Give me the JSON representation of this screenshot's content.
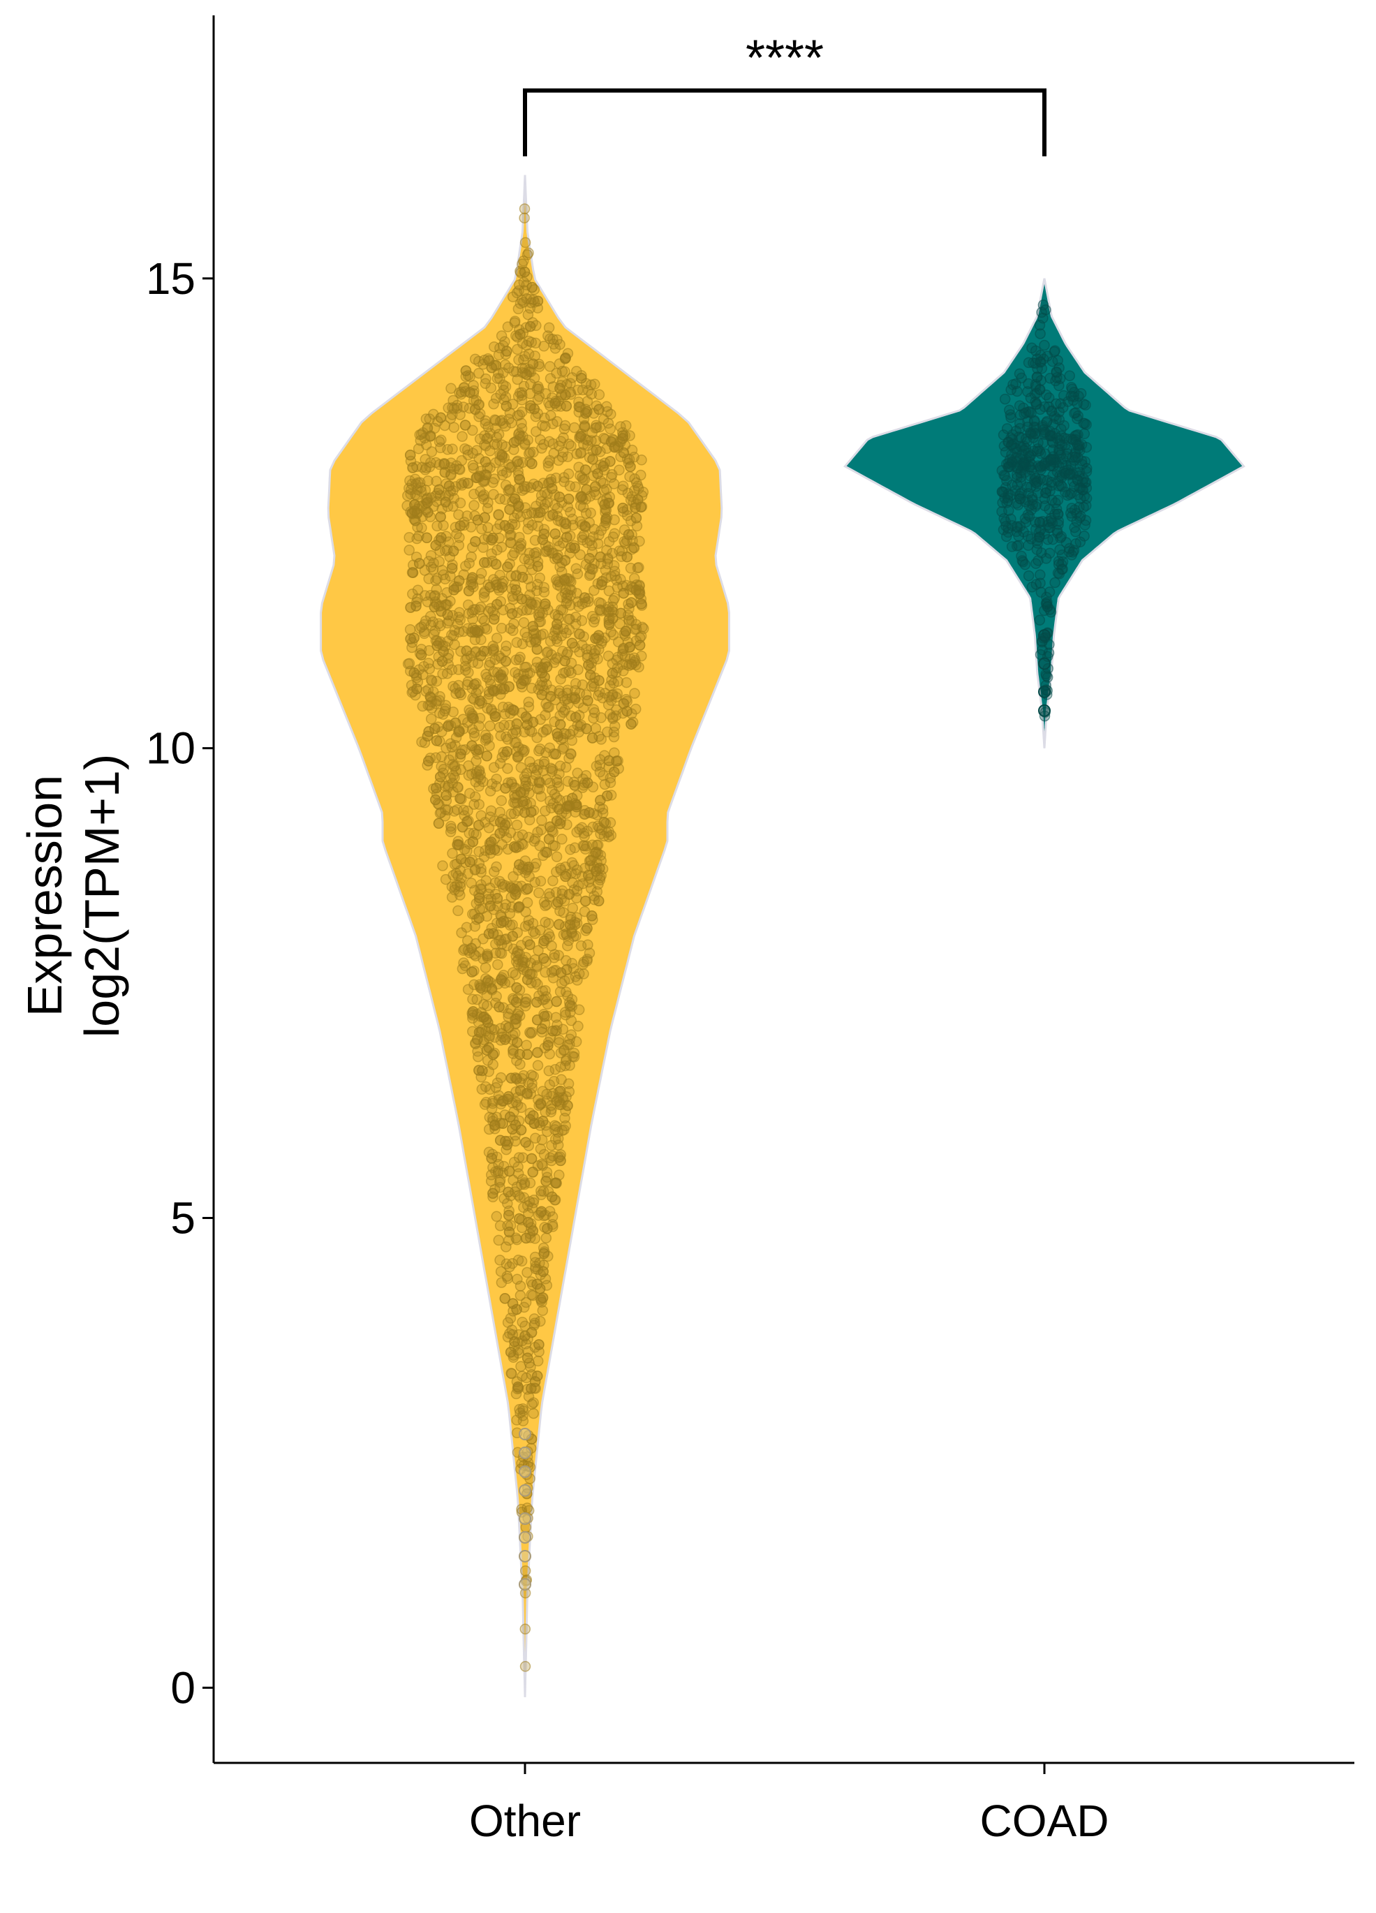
{
  "chart_data": {
    "type": "violin",
    "title": "",
    "xlabel": "",
    "ylabel_lines": [
      "Expression",
      "log2(TPM+1)"
    ],
    "ylim": [
      -0.8,
      17.8
    ],
    "yticks": [
      0,
      5,
      10,
      15
    ],
    "ytick_labels": [
      "0",
      "5",
      "10",
      "15"
    ],
    "legend": "none",
    "grid": false,
    "categories": [
      "Other",
      "COAD"
    ],
    "series": [
      {
        "category": "Other",
        "color": "#FFC845",
        "point_color": "#A07D1C",
        "ymin": -0.1,
        "ymax": 16.1,
        "profile": [
          [
            -0.1,
            0.0
          ],
          [
            1.0,
            0.01
          ],
          [
            2.0,
            0.03
          ],
          [
            3.0,
            0.07
          ],
          [
            4.0,
            0.14
          ],
          [
            5.0,
            0.21
          ],
          [
            6.0,
            0.28
          ],
          [
            7.0,
            0.36
          ],
          [
            8.0,
            0.46
          ],
          [
            9.0,
            0.6
          ],
          [
            9.3,
            0.6
          ],
          [
            10.0,
            0.7
          ],
          [
            11.0,
            0.86
          ],
          [
            11.5,
            0.86
          ],
          [
            12.0,
            0.8
          ],
          [
            12.5,
            0.83
          ],
          [
            13.0,
            0.82
          ],
          [
            13.5,
            0.68
          ],
          [
            14.0,
            0.42
          ],
          [
            14.5,
            0.16
          ],
          [
            15.0,
            0.04
          ],
          [
            15.5,
            0.01
          ],
          [
            16.1,
            0.0
          ]
        ],
        "notable_points": [
          1.1,
          1.4,
          1.6,
          1.8,
          2.1,
          2.3,
          2.5,
          2.7
        ]
      },
      {
        "category": "COAD",
        "color": "#007B78",
        "point_color": "#044A48",
        "ymin": 10.0,
        "ymax": 15.0,
        "profile": [
          [
            10.0,
            0.0
          ],
          [
            10.4,
            0.01
          ],
          [
            10.8,
            0.03
          ],
          [
            11.2,
            0.04
          ],
          [
            11.6,
            0.06
          ],
          [
            12.0,
            0.16
          ],
          [
            12.3,
            0.3
          ],
          [
            12.6,
            0.55
          ],
          [
            13.0,
            0.84
          ],
          [
            13.3,
            0.74
          ],
          [
            13.6,
            0.35
          ],
          [
            14.0,
            0.17
          ],
          [
            14.3,
            0.09
          ],
          [
            14.6,
            0.03
          ],
          [
            15.0,
            0.0
          ]
        ],
        "notable_points": [
          10.4,
          10.6,
          10.9,
          11.2
        ]
      }
    ],
    "comparison": {
      "groups": [
        "Other",
        "COAD"
      ],
      "label": "****",
      "bracket_y": 17.0,
      "tick_bottom_y": 16.3
    }
  }
}
